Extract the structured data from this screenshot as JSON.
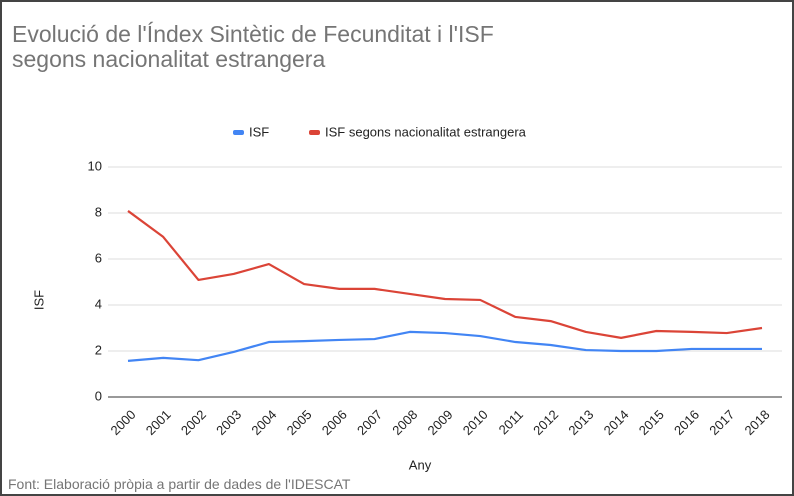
{
  "chart_data": {
    "type": "line",
    "title": "Evolució de l'Índex Sintètic de Fecunditat i l'ISF segons nacionalitat estrangera",
    "source": "Font: Elaboració pròpia a partir de dades de l'IDESCAT",
    "x_label": "Any",
    "y_label": "ISF",
    "categories": [
      "2000",
      "2001",
      "2002",
      "2003",
      "2004",
      "2005",
      "2006",
      "2007",
      "2008",
      "2009",
      "2010",
      "2011",
      "2012",
      "2013",
      "2014",
      "2015",
      "2016",
      "2017",
      "2018"
    ],
    "series": [
      {
        "name": "ISF",
        "color": "#4285f4",
        "values": [
          1.57,
          1.7,
          1.6,
          1.96,
          2.39,
          2.43,
          2.48,
          2.52,
          2.83,
          2.78,
          2.65,
          2.39,
          2.26,
          2.04,
          2.0,
          2.0,
          2.09,
          2.09,
          2.09
        ]
      },
      {
        "name": "ISF segons nacionalitat estrangera",
        "color": "#db4437",
        "values": [
          8.09,
          6.96,
          5.09,
          5.35,
          5.78,
          4.91,
          4.7,
          4.7,
          4.48,
          4.26,
          4.22,
          3.48,
          3.3,
          2.83,
          2.57,
          2.87,
          2.83,
          2.78,
          3.0
        ]
      }
    ],
    "ylim": [
      0,
      10
    ],
    "yticks": [
      0,
      2,
      4,
      6,
      8,
      10
    ],
    "grid": true,
    "legend": "top"
  }
}
